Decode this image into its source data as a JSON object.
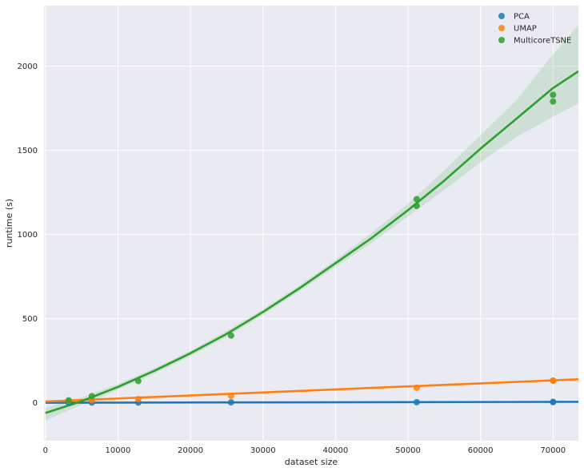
{
  "chart_data": {
    "type": "scatter",
    "title": "",
    "xlabel": "dataset size",
    "ylabel": "runtime (s)",
    "xlim": [
      -200,
      73500
    ],
    "ylim": [
      -225,
      2360
    ],
    "xticks": [
      0,
      10000,
      20000,
      30000,
      40000,
      50000,
      60000,
      70000
    ],
    "yticks": [
      0,
      500,
      1000,
      1500,
      2000
    ],
    "grid": true,
    "legend_position": "top-right",
    "series": [
      {
        "name": "PCA",
        "color": "#1f77b4",
        "points": [
          [
            3200,
            2
          ],
          [
            6400,
            2
          ],
          [
            12800,
            2
          ],
          [
            25600,
            3
          ],
          [
            51200,
            4
          ],
          [
            70000,
            5
          ],
          [
            70000,
            5
          ]
        ],
        "fit": [
          [
            0,
            1
          ],
          [
            73500,
            6
          ]
        ]
      },
      {
        "name": "UMAP",
        "color": "#ff7f0e",
        "points": [
          [
            3200,
            12
          ],
          [
            6400,
            15
          ],
          [
            12800,
            22
          ],
          [
            25600,
            42
          ],
          [
            51200,
            90
          ],
          [
            70000,
            132
          ],
          [
            70000,
            132
          ]
        ],
        "fit": [
          [
            0,
            8
          ],
          [
            73500,
            140
          ]
        ]
      },
      {
        "name": "MulticoreTSNE",
        "color": "#2ca02c",
        "points": [
          [
            3200,
            15
          ],
          [
            6400,
            40
          ],
          [
            12800,
            130
          ],
          [
            25600,
            400
          ],
          [
            51200,
            1210
          ],
          [
            51200,
            1170
          ],
          [
            70000,
            1830
          ],
          [
            70000,
            1790
          ]
        ],
        "fit": [
          [
            0,
            -60
          ],
          [
            5000,
            10
          ],
          [
            10000,
            95
          ],
          [
            15000,
            190
          ],
          [
            20000,
            295
          ],
          [
            25000,
            410
          ],
          [
            30000,
            540
          ],
          [
            35000,
            680
          ],
          [
            40000,
            830
          ],
          [
            45000,
            980
          ],
          [
            50000,
            1145
          ],
          [
            55000,
            1320
          ],
          [
            60000,
            1510
          ],
          [
            65000,
            1690
          ],
          [
            70000,
            1870
          ],
          [
            73500,
            1970
          ]
        ],
        "ci_upper": [
          [
            0,
            -30
          ],
          [
            5000,
            32
          ],
          [
            10000,
            112
          ],
          [
            15000,
            205
          ],
          [
            20000,
            310
          ],
          [
            25000,
            428
          ],
          [
            30000,
            556
          ],
          [
            35000,
            696
          ],
          [
            40000,
            850
          ],
          [
            45000,
            1010
          ],
          [
            50000,
            1185
          ],
          [
            55000,
            1380
          ],
          [
            60000,
            1590
          ],
          [
            65000,
            1800
          ],
          [
            70000,
            2070
          ],
          [
            73500,
            2245
          ]
        ],
        "ci_lower": [
          [
            0,
            -105
          ],
          [
            5000,
            -10
          ],
          [
            10000,
            78
          ],
          [
            15000,
            173
          ],
          [
            20000,
            278
          ],
          [
            25000,
            392
          ],
          [
            30000,
            522
          ],
          [
            35000,
            662
          ],
          [
            40000,
            808
          ],
          [
            45000,
            950
          ],
          [
            50000,
            1108
          ],
          [
            55000,
            1265
          ],
          [
            60000,
            1430
          ],
          [
            65000,
            1580
          ],
          [
            70000,
            1700
          ],
          [
            73500,
            1780
          ]
        ]
      }
    ]
  }
}
